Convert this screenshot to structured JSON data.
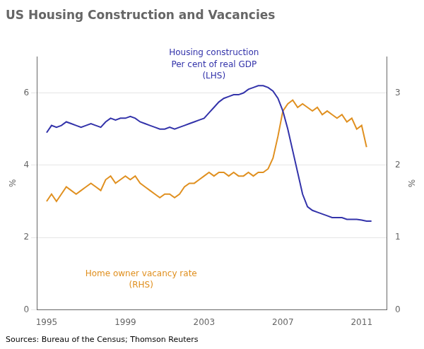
{
  "chart_data": {
    "type": "line",
    "title": "US Housing Construction and Vacancies",
    "source": "Sources: Bureau of the Census; Thomson Reuters",
    "ylabel": "%",
    "y2label": "%",
    "xlim": [
      1994.5,
      2012.3
    ],
    "xticks": [
      1995,
      1999,
      2003,
      2007,
      2011
    ],
    "ylim": [
      0,
      7
    ],
    "yticks": [
      0,
      2,
      4,
      6
    ],
    "y2lim": [
      0,
      3.5
    ],
    "y2ticks": [
      0,
      1,
      2,
      3
    ],
    "grid": true,
    "annotations": [
      {
        "text": "Housing construction\nPer cent of real GDP\n(LHS)",
        "color": "#3333aa"
      },
      {
        "text": "Home owner vacancy rate\n(RHS)",
        "color": "#e09020"
      }
    ],
    "series": [
      {
        "color": "#3333aa",
        "axis": "y",
        "x": [
          1995.0,
          1995.25,
          1995.5,
          1995.75,
          1996.0,
          1996.25,
          1996.5,
          1996.75,
          1997.0,
          1997.25,
          1997.5,
          1997.75,
          1998.0,
          1998.25,
          1998.5,
          1998.75,
          1999.0,
          1999.25,
          1999.5,
          1999.75,
          2000.0,
          2000.25,
          2000.5,
          2000.75,
          2001.0,
          2001.25,
          2001.5,
          2001.75,
          2002.0,
          2002.25,
          2002.5,
          2002.75,
          2003.0,
          2003.25,
          2003.5,
          2003.75,
          2004.0,
          2004.25,
          2004.5,
          2004.75,
          2005.0,
          2005.25,
          2005.5,
          2005.75,
          2006.0,
          2006.25,
          2006.5,
          2006.75,
          2007.0,
          2007.25,
          2007.5,
          2007.75,
          2008.0,
          2008.25,
          2008.5,
          2008.75,
          2009.0,
          2009.25,
          2009.5,
          2009.75,
          2010.0,
          2010.25,
          2010.5,
          2010.75,
          2011.0,
          2011.25,
          2011.5
        ],
        "values": [
          4.9,
          5.1,
          5.05,
          5.1,
          5.2,
          5.15,
          5.1,
          5.05,
          5.1,
          5.15,
          5.1,
          5.05,
          5.2,
          5.3,
          5.25,
          5.3,
          5.3,
          5.35,
          5.3,
          5.2,
          5.15,
          5.1,
          5.05,
          5.0,
          5.0,
          5.05,
          5.0,
          5.05,
          5.1,
          5.15,
          5.2,
          5.25,
          5.3,
          5.45,
          5.6,
          5.75,
          5.85,
          5.9,
          5.95,
          5.95,
          6.0,
          6.1,
          6.15,
          6.2,
          6.2,
          6.15,
          6.05,
          5.85,
          5.5,
          5.0,
          4.4,
          3.8,
          3.2,
          2.85,
          2.75,
          2.7,
          2.65,
          2.6,
          2.55,
          2.55,
          2.55,
          2.5,
          2.5,
          2.5,
          2.48,
          2.45,
          2.45
        ]
      },
      {
        "color": "#e09020",
        "axis": "y2",
        "x": [
          1995.0,
          1995.25,
          1995.5,
          1995.75,
          1996.0,
          1996.25,
          1996.5,
          1996.75,
          1997.0,
          1997.25,
          1997.5,
          1997.75,
          1998.0,
          1998.25,
          1998.5,
          1998.75,
          1999.0,
          1999.25,
          1999.5,
          1999.75,
          2000.0,
          2000.25,
          2000.5,
          2000.75,
          2001.0,
          2001.25,
          2001.5,
          2001.75,
          2002.0,
          2002.25,
          2002.5,
          2002.75,
          2003.0,
          2003.25,
          2003.5,
          2003.75,
          2004.0,
          2004.25,
          2004.5,
          2004.75,
          2005.0,
          2005.25,
          2005.5,
          2005.75,
          2006.0,
          2006.25,
          2006.5,
          2006.75,
          2007.0,
          2007.25,
          2007.5,
          2007.75,
          2008.0,
          2008.25,
          2008.5,
          2008.75,
          2009.0,
          2009.25,
          2009.5,
          2009.75,
          2010.0,
          2010.25,
          2010.5,
          2010.75,
          2011.0,
          2011.25
        ],
        "values": [
          1.5,
          1.6,
          1.5,
          1.6,
          1.7,
          1.65,
          1.6,
          1.65,
          1.7,
          1.75,
          1.7,
          1.65,
          1.8,
          1.85,
          1.75,
          1.8,
          1.85,
          1.8,
          1.85,
          1.75,
          1.7,
          1.65,
          1.6,
          1.55,
          1.6,
          1.6,
          1.55,
          1.6,
          1.7,
          1.75,
          1.75,
          1.8,
          1.85,
          1.9,
          1.85,
          1.9,
          1.9,
          1.85,
          1.9,
          1.85,
          1.85,
          1.9,
          1.85,
          1.9,
          1.9,
          1.95,
          2.1,
          2.4,
          2.75,
          2.85,
          2.9,
          2.8,
          2.85,
          2.8,
          2.75,
          2.8,
          2.7,
          2.75,
          2.7,
          2.65,
          2.7,
          2.6,
          2.65,
          2.5,
          2.55,
          2.25
        ]
      }
    ]
  }
}
